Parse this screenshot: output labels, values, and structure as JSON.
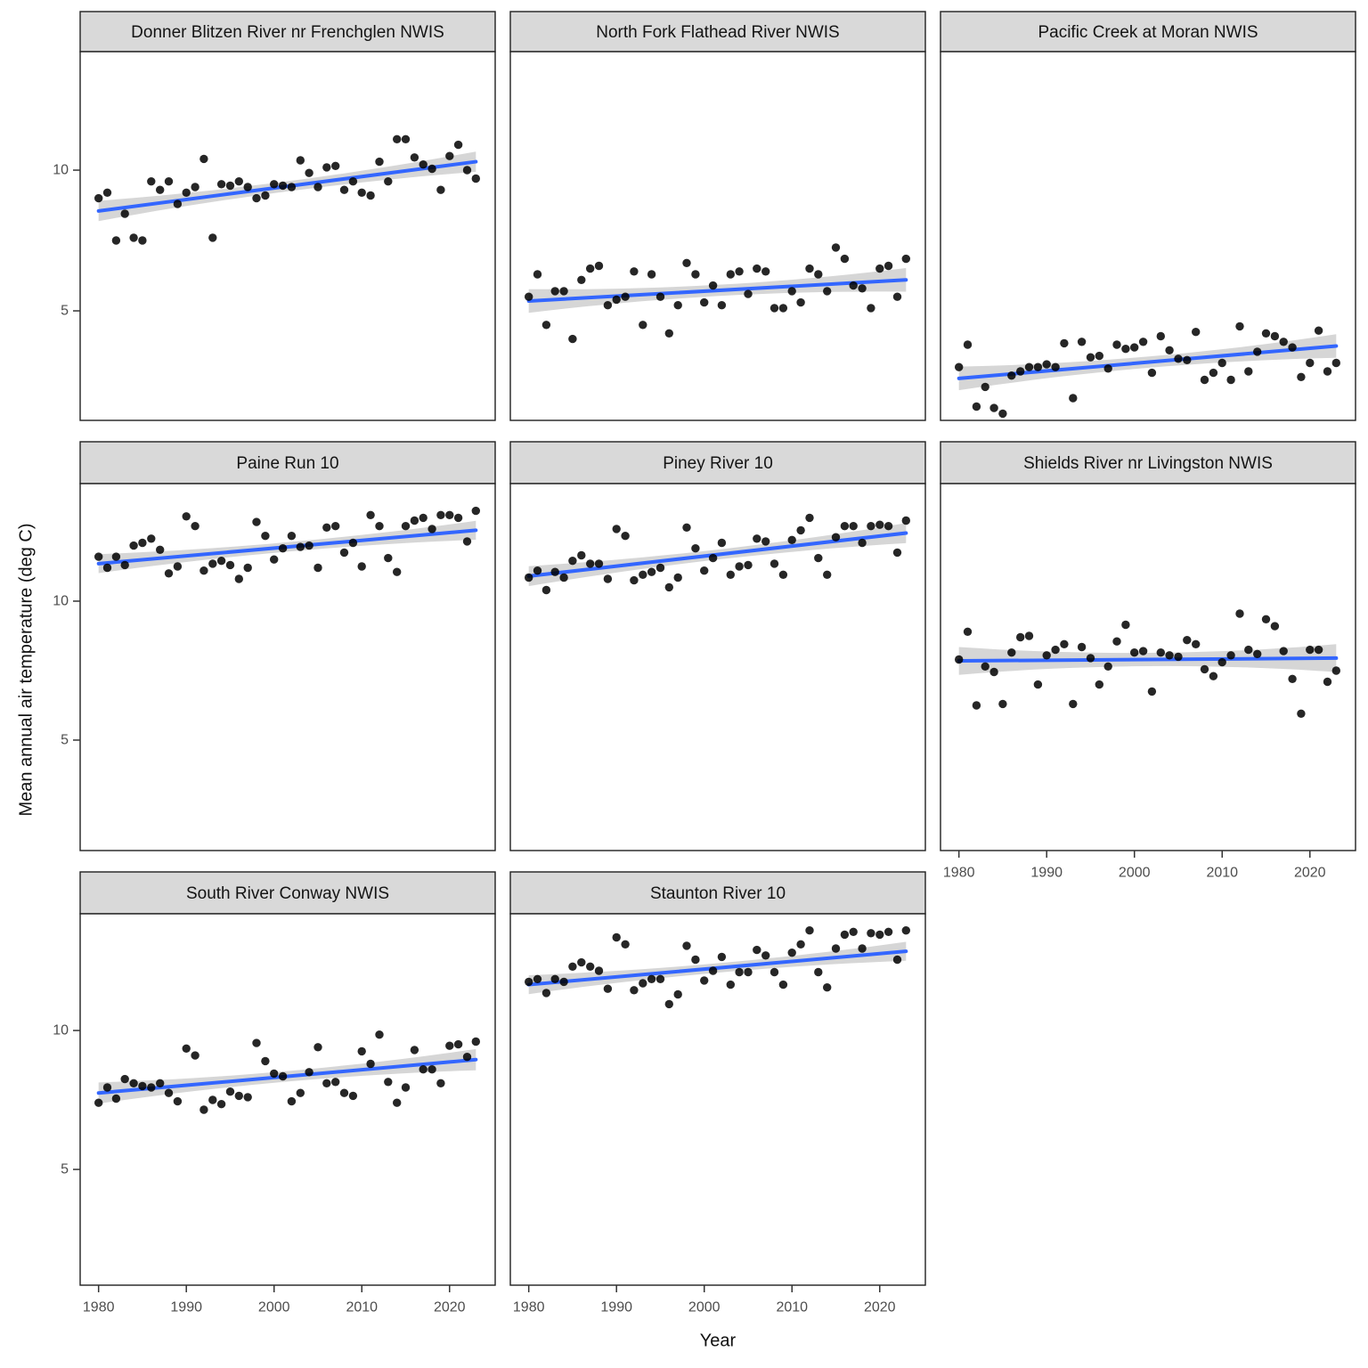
{
  "figure": {
    "y_axis_label": "Mean annual air temperature (deg C)",
    "x_axis_label": "Year",
    "x_tick_labels": [
      "1980",
      "1990",
      "2000",
      "2010",
      "2020"
    ],
    "y_tick_labels": [
      "10",
      "5"
    ],
    "colors": {
      "trend_line": "#3366FF",
      "confidence_band": "#D6D6D6",
      "point": "#000000",
      "strip_background": "#D9D9D9",
      "panel_border": "#202020",
      "axis_text": "#4D4D4D",
      "background": "#FFFFFF"
    }
  },
  "chart_data": {
    "type": "scatter",
    "title": "",
    "xlabel": "Year",
    "ylabel": "Mean annual air temperature (deg C)",
    "x_ticks": [
      1980,
      1990,
      2000,
      2010,
      2020
    ],
    "y_ticks": [
      10,
      5
    ],
    "xlim": [
      1977.9,
      2025.2
    ],
    "ylim_row1": [
      1.11,
      14.21
    ],
    "ylim_row2": [
      1.03,
      14.23
    ],
    "ylim_row3": [
      0.83,
      14.2
    ],
    "grid": "off",
    "legend": "none",
    "years": [
      1980,
      1981,
      1982,
      1983,
      1984,
      1985,
      1986,
      1987,
      1988,
      1989,
      1990,
      1991,
      1992,
      1993,
      1994,
      1995,
      1996,
      1997,
      1998,
      1999,
      2000,
      2001,
      2002,
      2003,
      2004,
      2005,
      2006,
      2007,
      2008,
      2009,
      2010,
      2011,
      2012,
      2013,
      2014,
      2015,
      2016,
      2017,
      2018,
      2019,
      2020,
      2021,
      2022,
      2023
    ],
    "panels": [
      {
        "title": "Donner Blitzen River nr Frenchglen NWIS",
        "values": [
          9.0,
          9.2,
          7.5,
          8.45,
          7.6,
          7.5,
          9.6,
          9.3,
          9.6,
          8.8,
          9.2,
          9.4,
          10.4,
          7.6,
          9.5,
          9.45,
          9.6,
          9.4,
          9.0,
          9.1,
          9.5,
          9.45,
          9.4,
          10.35,
          9.9,
          9.4,
          10.1,
          10.15,
          9.3,
          9.6,
          9.2,
          9.1,
          10.3,
          9.6,
          11.1,
          11.1,
          10.45,
          10.2,
          10.05,
          9.3,
          10.5,
          10.9,
          10.0,
          9.7
        ],
        "trend": {
          "x": [
            1980,
            2023
          ],
          "y": [
            8.55,
            10.3
          ]
        },
        "band_halfwidth": {
          "end": 0.36,
          "mid": 0.18
        }
      },
      {
        "title": "North Fork Flathead River NWIS",
        "values": [
          5.5,
          6.3,
          4.5,
          5.7,
          5.7,
          4.0,
          6.1,
          6.5,
          6.6,
          5.2,
          5.4,
          5.5,
          6.4,
          4.5,
          6.3,
          5.5,
          4.2,
          5.2,
          6.7,
          6.3,
          5.3,
          5.9,
          5.2,
          6.3,
          6.4,
          5.6,
          6.5,
          6.4,
          5.1,
          5.1,
          5.7,
          5.3,
          6.5,
          6.3,
          5.7,
          7.25,
          6.85,
          5.9,
          5.8,
          5.1,
          6.5,
          6.6,
          5.5,
          6.85
        ],
        "trend": {
          "x": [
            1980,
            2023
          ],
          "y": [
            5.35,
            6.1
          ]
        },
        "band_halfwidth": {
          "end": 0.42,
          "mid": 0.2
        }
      },
      {
        "title": "Pacific Creek at Moran NWIS",
        "values": [
          3.0,
          3.8,
          1.6,
          2.3,
          1.55,
          1.35,
          2.7,
          2.85,
          3.0,
          3.0,
          3.1,
          3.0,
          3.85,
          1.9,
          3.9,
          3.35,
          3.4,
          2.95,
          3.8,
          3.65,
          3.7,
          3.9,
          2.8,
          4.1,
          3.6,
          3.3,
          3.25,
          4.25,
          2.55,
          2.8,
          3.15,
          2.55,
          4.45,
          2.85,
          3.55,
          4.2,
          4.1,
          3.9,
          3.7,
          2.65,
          3.15,
          4.3,
          2.85,
          3.15
        ],
        "trend": {
          "x": [
            1980,
            2023
          ],
          "y": [
            2.6,
            3.75
          ]
        },
        "band_halfwidth": {
          "end": 0.42,
          "mid": 0.2
        }
      },
      {
        "title": "Paine Run 10",
        "values": [
          11.6,
          11.2,
          11.6,
          11.3,
          12.0,
          12.1,
          12.25,
          11.85,
          11.0,
          11.25,
          13.05,
          12.7,
          11.1,
          11.35,
          11.45,
          11.3,
          10.8,
          11.2,
          12.85,
          12.35,
          11.5,
          11.9,
          12.35,
          11.95,
          12.0,
          11.2,
          12.65,
          12.7,
          11.75,
          12.1,
          11.25,
          13.1,
          12.7,
          11.55,
          11.05,
          12.7,
          12.9,
          13.0,
          12.6,
          13.1,
          13.1,
          13.0,
          12.15,
          13.25
        ],
        "trend": {
          "x": [
            1980,
            2023
          ],
          "y": [
            11.35,
            12.55
          ]
        },
        "band_halfwidth": {
          "end": 0.34,
          "mid": 0.17
        }
      },
      {
        "title": "Piney River 10",
        "values": [
          10.85,
          11.1,
          10.4,
          11.05,
          10.85,
          11.45,
          11.65,
          11.35,
          11.35,
          10.8,
          12.6,
          12.35,
          10.75,
          10.95,
          11.05,
          11.2,
          10.5,
          10.85,
          12.65,
          11.9,
          11.1,
          11.55,
          12.1,
          10.95,
          11.25,
          11.3,
          12.25,
          12.15,
          11.35,
          10.95,
          12.2,
          12.55,
          13.0,
          11.55,
          10.95,
          12.3,
          12.7,
          12.7,
          12.1,
          12.7,
          12.75,
          12.7,
          11.75,
          12.9
        ],
        "trend": {
          "x": [
            1980,
            2023
          ],
          "y": [
            10.9,
            12.45
          ]
        },
        "band_halfwidth": {
          "end": 0.36,
          "mid": 0.18
        }
      },
      {
        "title": "Shields River nr Livingston NWIS",
        "values": [
          7.9,
          8.9,
          6.25,
          7.65,
          7.45,
          6.3,
          8.15,
          8.7,
          8.75,
          7.0,
          8.05,
          8.25,
          8.45,
          6.3,
          8.35,
          7.95,
          7.0,
          7.65,
          8.55,
          9.15,
          8.15,
          8.2,
          6.75,
          8.15,
          8.05,
          8.0,
          8.6,
          8.45,
          7.55,
          7.3,
          7.8,
          8.05,
          9.55,
          8.25,
          8.1,
          9.35,
          9.1,
          8.2,
          7.2,
          5.95,
          8.25,
          8.25,
          7.1,
          7.5
        ],
        "trend": {
          "x": [
            1980,
            2023
          ],
          "y": [
            7.85,
            7.95
          ]
        },
        "band_halfwidth": {
          "end": 0.5,
          "mid": 0.24
        }
      },
      {
        "title": "South River Conway NWIS",
        "values": [
          7.4,
          7.95,
          7.55,
          8.25,
          8.1,
          8.0,
          7.95,
          8.1,
          7.75,
          7.45,
          9.35,
          9.1,
          7.15,
          7.5,
          7.35,
          7.8,
          7.65,
          7.6,
          9.55,
          8.9,
          8.45,
          8.35,
          7.45,
          7.75,
          8.5,
          9.4,
          8.1,
          8.15,
          7.75,
          7.65,
          9.25,
          8.8,
          9.85,
          8.15,
          7.4,
          7.95,
          9.3,
          8.6,
          8.6,
          8.1,
          9.45,
          9.5,
          9.05,
          9.6
        ],
        "trend": {
          "x": [
            1980,
            2023
          ],
          "y": [
            7.75,
            8.95
          ]
        },
        "band_halfwidth": {
          "end": 0.38,
          "mid": 0.19
        }
      },
      {
        "title": "Staunton River 10",
        "values": [
          11.75,
          11.85,
          11.35,
          11.85,
          11.75,
          12.3,
          12.45,
          12.3,
          12.15,
          11.5,
          13.35,
          13.1,
          11.45,
          11.7,
          11.85,
          11.85,
          10.95,
          11.3,
          13.05,
          12.55,
          11.8,
          12.15,
          12.65,
          11.65,
          12.1,
          12.1,
          12.9,
          12.7,
          12.1,
          11.65,
          12.8,
          13.1,
          13.6,
          12.1,
          11.55,
          12.95,
          13.45,
          13.55,
          12.95,
          13.5,
          13.45,
          13.55,
          12.55,
          13.6
        ],
        "trend": {
          "x": [
            1980,
            2023
          ],
          "y": [
            11.65,
            12.85
          ]
        },
        "band_halfwidth": {
          "end": 0.34,
          "mid": 0.17
        }
      }
    ]
  }
}
